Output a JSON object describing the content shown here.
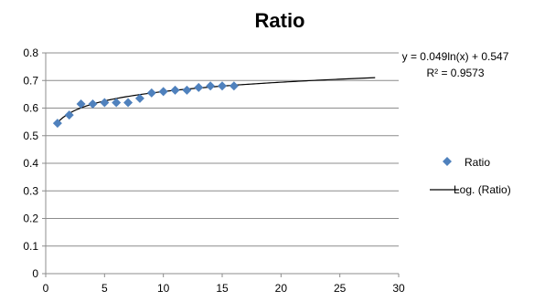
{
  "chart_data": {
    "type": "scatter",
    "title": "Ratio",
    "xlabel": "",
    "ylabel": "",
    "xlim": [
      0,
      30
    ],
    "ylim": [
      0,
      0.8
    ],
    "x_ticks": [
      0,
      5,
      10,
      15,
      20,
      25,
      30
    ],
    "y_ticks": [
      0,
      0.1,
      0.2,
      0.3,
      0.4,
      0.5,
      0.6,
      0.7,
      0.8
    ],
    "x_tick_labels": [
      "0",
      "5",
      "10",
      "15",
      "20",
      "25",
      "30"
    ],
    "y_tick_labels": [
      "0",
      "0.1",
      "0.2",
      "0.3",
      "0.4",
      "0.5",
      "0.6",
      "0.7",
      "0.8"
    ],
    "grid": "horizontal",
    "series": [
      {
        "name": "Ratio",
        "marker": "diamond",
        "color": "#4f81bd",
        "x": [
          1,
          2,
          3,
          4,
          5,
          6,
          7,
          8,
          9,
          10,
          11,
          12,
          13,
          14,
          15,
          16
        ],
        "y": [
          0.545,
          0.575,
          0.615,
          0.615,
          0.62,
          0.62,
          0.62,
          0.635,
          0.655,
          0.66,
          0.665,
          0.665,
          0.675,
          0.68,
          0.68,
          0.68
        ]
      }
    ],
    "trendline": {
      "name": "Log. (Ratio)",
      "type": "logarithmic",
      "coef_a": 0.049,
      "coef_b": 0.547,
      "x_range": [
        1,
        28
      ],
      "color": "#000000",
      "equation": "y = 0.049ln(x) + 0.547",
      "r_squared": "R² = 0.9573"
    },
    "legend": {
      "position": "right"
    }
  }
}
